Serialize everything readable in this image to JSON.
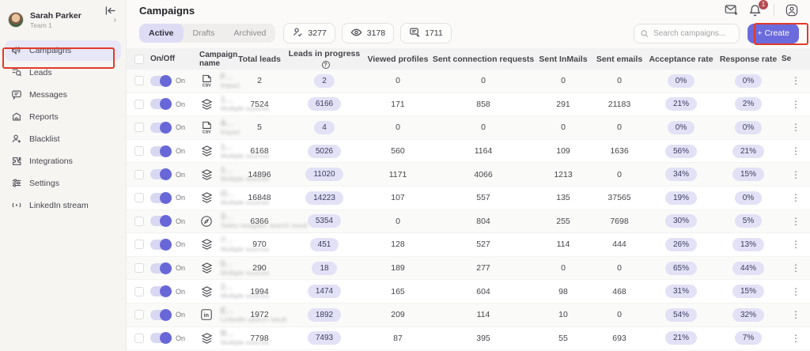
{
  "colors": {
    "accent": "#6b6bde",
    "annotation": "#e23a29",
    "pill_bg": "#e2e1f6",
    "toggle_on": "#6867d8"
  },
  "sidebar": {
    "user": {
      "name": "Sarah Parker",
      "team": "Team 1"
    },
    "items": [
      {
        "label": "Campaigns",
        "icon": "megaphone-icon",
        "active": true
      },
      {
        "label": "Leads",
        "icon": "leads-search-icon",
        "active": false
      },
      {
        "label": "Messages",
        "icon": "messages-icon",
        "active": false
      },
      {
        "label": "Reports",
        "icon": "reports-icon",
        "active": false
      },
      {
        "label": "Blacklist",
        "icon": "blacklist-icon",
        "active": false
      },
      {
        "label": "Integrations",
        "icon": "integrations-icon",
        "active": false
      },
      {
        "label": "Settings",
        "icon": "settings-icon",
        "active": false
      },
      {
        "label": "LinkedIn stream",
        "icon": "stream-icon",
        "active": false
      }
    ]
  },
  "header": {
    "title": "Campaigns",
    "notification_count": "1"
  },
  "toolbar": {
    "tabs": [
      {
        "label": "Active",
        "active": true
      },
      {
        "label": "Drafts",
        "active": false
      },
      {
        "label": "Archived",
        "active": false
      }
    ],
    "stats": [
      {
        "icon": "person-check-icon",
        "value": "3277"
      },
      {
        "icon": "eye-icon",
        "value": "3178"
      },
      {
        "icon": "message-sent-icon",
        "value": "1711"
      }
    ],
    "search_placeholder": "Search campaigns...",
    "create_label": "+ Create"
  },
  "table": {
    "columns": {
      "on_off": "On/Off",
      "campaign_name": "Campaign name",
      "total_leads": "Total leads",
      "leads_in_progress": "Leads in progress",
      "viewed_profiles": "Viewed profiles",
      "sent_connection_requests": "Sent connection requests",
      "sent_inmails": "Sent InMails",
      "sent_emails": "Sent emails",
      "acceptance_rate": "Acceptance rate",
      "response_rate": "Response rate",
      "settings_truncated": "Se"
    },
    "rows": [
      {
        "on": "On",
        "icon": "csv-file-icon",
        "name": "Follow Up to Pitch",
        "source": "Import",
        "total": "2",
        "progress": "2",
        "viewed": "0",
        "connections": "0",
        "inmails": "0",
        "emails": "0",
        "acceptance": "0%",
        "response": "0%"
      },
      {
        "on": "On",
        "icon": "layers-icon",
        "name": "1.12.23. Ongoing campaign with focus on email",
        "source": "Multiple sources",
        "total": "7524",
        "progress": "6166",
        "viewed": "171",
        "connections": "858",
        "inmails": "291",
        "emails": "21183",
        "acceptance": "21%",
        "response": "2%"
      },
      {
        "on": "On",
        "icon": "csv-file-icon",
        "name": "Attended demo follow up",
        "source": "Import",
        "total": "5",
        "progress": "4",
        "viewed": "0",
        "connections": "0",
        "inmails": "0",
        "emails": "0",
        "acceptance": "0%",
        "response": "0%"
      },
      {
        "on": "On",
        "icon": "layers-icon",
        "name": "11.12.23. EMEA+US, 2nd, ceo+founder...",
        "source": "Multiple sources",
        "total": "6168",
        "progress": "5026",
        "viewed": "560",
        "connections": "1164",
        "inmails": "109",
        "emails": "1636",
        "acceptance": "56%",
        "response": "21%"
      },
      {
        "on": "On",
        "icon": "layers-icon",
        "name": "17/11/23/ CSV LinkedIn import only",
        "source": "Multiple sources",
        "total": "14896",
        "progress": "11020",
        "viewed": "1171",
        "connections": "4066",
        "inmails": "1213",
        "emails": "0",
        "acceptance": "34%",
        "response": "15%"
      },
      {
        "on": "On",
        "icon": "layers-icon",
        "name": "Ongoing campaign with focus on Email 2",
        "source": "Multiple sources",
        "total": "16848",
        "progress": "14223",
        "viewed": "107",
        "connections": "557",
        "inmails": "135",
        "emails": "37565",
        "acceptance": "19%",
        "response": "0%"
      },
      {
        "on": "On",
        "icon": "compass-icon",
        "name": "30/10/23 emea 51-200, ceo, founder | co",
        "source": "Sales navigator search result",
        "total": "6366",
        "progress": "5354",
        "viewed": "0",
        "connections": "804",
        "inmails": "255",
        "emails": "7698",
        "acceptance": "30%",
        "response": "5%"
      },
      {
        "on": "On",
        "icon": "layers-icon",
        "name": "7/11/23 Lemlist and Instantly from...",
        "source": "Multiple sources",
        "total": "970",
        "progress": "451",
        "viewed": "128",
        "connections": "527",
        "inmails": "114",
        "emails": "444",
        "acceptance": "26%",
        "response": "13%"
      },
      {
        "on": "On",
        "icon": "layers-icon",
        "name": "5.1.23. Viewed Profile SN",
        "source": "Multiple sources",
        "total": "290",
        "progress": "18",
        "viewed": "189",
        "connections": "277",
        "inmails": "0",
        "emails": "0",
        "acceptance": "65%",
        "response": "44%"
      },
      {
        "on": "On",
        "icon": "layers-icon",
        "name": "22.11.23. Expandi",
        "source": "Multiple sources",
        "total": "1994",
        "progress": "1474",
        "viewed": "165",
        "connections": "604",
        "inmails": "98",
        "emails": "468",
        "acceptance": "31%",
        "response": "15%"
      },
      {
        "on": "On",
        "icon": "linkedin-icon",
        "name": "Event lead gen",
        "source": "LinkedIn search result",
        "total": "1972",
        "progress": "1892",
        "viewed": "209",
        "connections": "114",
        "inmails": "10",
        "emails": "0",
        "acceptance": "54%",
        "response": "32%"
      },
      {
        "on": "On",
        "icon": "layers-icon",
        "name": "Recycle MID",
        "source": "Multiple sources",
        "total": "7798",
        "progress": "7493",
        "viewed": "87",
        "connections": "395",
        "inmails": "55",
        "emails": "693",
        "acceptance": "21%",
        "response": "7%"
      }
    ]
  }
}
